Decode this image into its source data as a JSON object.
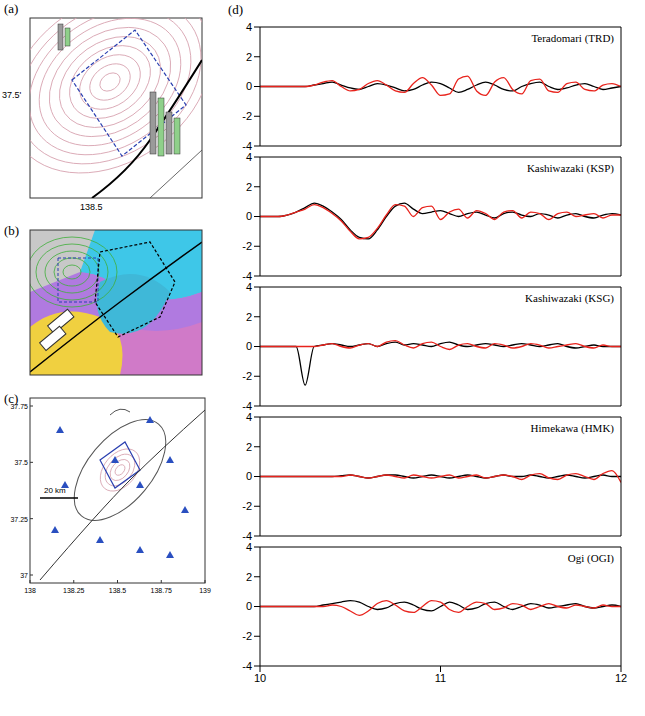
{
  "figure": {
    "panels": [
      {
        "label": "(a)",
        "lat_label": "37.5'",
        "lon_label": 138.5
      },
      {
        "label": "(b)"
      },
      {
        "label": "(c)",
        "lat_ticks": [
          37.75,
          37.5,
          37.25,
          37
        ],
        "lon_ticks": [
          138,
          138.25,
          138.5,
          138.75,
          139
        ],
        "scale_label": "20 km"
      },
      {
        "label": "(d)"
      }
    ]
  },
  "chart_data": [
    {
      "type": "line",
      "title": "Teradomari (TRD)",
      "tick_labels": "y",
      "xlim": [
        10,
        12
      ],
      "xticks": [
        10,
        11,
        12
      ],
      "ylim": [
        -4,
        4
      ],
      "yticks": [
        -4,
        -2,
        0,
        2,
        4
      ],
      "x": [
        10,
        10.05,
        10.1,
        10.15,
        10.2,
        10.25,
        10.3,
        10.35,
        10.4,
        10.45,
        10.5,
        10.55,
        10.6,
        10.65,
        10.7,
        10.75,
        10.8,
        10.85,
        10.9,
        10.95,
        11,
        11.05,
        11.1,
        11.15,
        11.2,
        11.25,
        11.3,
        11.35,
        11.4,
        11.45,
        11.5,
        11.55,
        11.6,
        11.65,
        11.7,
        11.75,
        11.8,
        11.85,
        11.9,
        11.95,
        12
      ],
      "series": [
        {
          "color": "#000000",
          "values": [
            0,
            0,
            0,
            0,
            0,
            0,
            0.1,
            0.2,
            0.3,
            0.1,
            -0.1,
            -0.2,
            0,
            0.2,
            0.1,
            -0.1,
            -0.3,
            -0.2,
            0.1,
            0.3,
            0.2,
            -0.1,
            -0.4,
            -0.2,
            0.1,
            0.3,
            0.1,
            -0.2,
            -0.3,
            0,
            0.2,
            0.3,
            0,
            -0.2,
            -0.1,
            0.1,
            0.2,
            0,
            -0.2,
            -0.1,
            0
          ]
        },
        {
          "color": "#e8231c",
          "values": [
            0,
            0,
            0,
            0,
            0,
            0,
            0.1,
            0.3,
            0.4,
            0,
            -0.3,
            -0.2,
            0.2,
            0.4,
            0.1,
            -0.3,
            -0.4,
            0.2,
            0.6,
            0.1,
            -0.6,
            -0.5,
            0.5,
            0.7,
            -0.3,
            -0.6,
            0.3,
            0.6,
            -0.2,
            -0.5,
            0.4,
            0.5,
            -0.3,
            -0.4,
            0.2,
            0.3,
            -0.2,
            -0.3,
            0.1,
            0.2,
            0
          ]
        }
      ]
    },
    {
      "type": "line",
      "title": "Kashiwazaki (KSP)",
      "tick_labels": "y",
      "xlim": [
        10,
        12
      ],
      "xticks": [
        10,
        11,
        12
      ],
      "ylim": [
        -4,
        4
      ],
      "yticks": [
        -4,
        -2,
        0,
        2,
        4
      ],
      "x": [
        10,
        10.05,
        10.1,
        10.15,
        10.2,
        10.25,
        10.3,
        10.35,
        10.4,
        10.45,
        10.5,
        10.55,
        10.6,
        10.65,
        10.7,
        10.75,
        10.8,
        10.85,
        10.9,
        10.95,
        11,
        11.05,
        11.1,
        11.15,
        11.2,
        11.25,
        11.3,
        11.35,
        11.4,
        11.45,
        11.5,
        11.55,
        11.6,
        11.65,
        11.7,
        11.75,
        11.8,
        11.85,
        11.9,
        11.95,
        12
      ],
      "series": [
        {
          "color": "#000000",
          "values": [
            0,
            0,
            0,
            0.1,
            0.3,
            0.6,
            0.9,
            0.7,
            0.3,
            -0.2,
            -0.9,
            -1.4,
            -1.5,
            -0.9,
            0,
            0.7,
            0.9,
            0.5,
            0.2,
            0.3,
            0.4,
            0.2,
            0,
            0.2,
            0.3,
            0.1,
            -0.1,
            0.2,
            0.3,
            0.1,
            0,
            0.2,
            0.1,
            -0.1,
            0.1,
            0.2,
            0,
            -0.1,
            0.1,
            0.2,
            0.1
          ]
        },
        {
          "color": "#e8231c",
          "values": [
            0,
            0,
            0,
            0.1,
            0.3,
            0.5,
            0.8,
            0.6,
            0.2,
            -0.3,
            -1,
            -1.5,
            -1.4,
            -0.8,
            0.1,
            0.8,
            0.7,
            0,
            0.6,
            0.7,
            -0.2,
            0.3,
            0.5,
            -0.1,
            0.4,
            0.2,
            -0.2,
            0.3,
            0.4,
            -0.1,
            0.3,
            0.2,
            -0.2,
            0.2,
            0.3,
            0,
            0.1,
            0.2,
            -0.1,
            0.1,
            0.1
          ]
        }
      ]
    },
    {
      "type": "line",
      "title": "Kashiwazaki (KSG)",
      "tick_labels": "y",
      "xlim": [
        10,
        12
      ],
      "xticks": [
        10,
        11,
        12
      ],
      "ylim": [
        -4,
        4
      ],
      "yticks": [
        -4,
        -2,
        0,
        2,
        4
      ],
      "x": [
        10,
        10.05,
        10.1,
        10.15,
        10.2,
        10.25,
        10.3,
        10.35,
        10.4,
        10.45,
        10.5,
        10.55,
        10.6,
        10.65,
        10.7,
        10.75,
        10.8,
        10.85,
        10.9,
        10.95,
        11,
        11.05,
        11.1,
        11.15,
        11.2,
        11.25,
        11.3,
        11.35,
        11.4,
        11.45,
        11.5,
        11.55,
        11.6,
        11.65,
        11.7,
        11.75,
        11.8,
        11.85,
        11.9,
        11.95,
        12
      ],
      "series": [
        {
          "color": "#000000",
          "values": [
            0,
            0,
            0,
            0,
            0,
            -2.6,
            0,
            0.1,
            0.2,
            0.1,
            0,
            0.1,
            0.2,
            0,
            0.2,
            0.3,
            0.1,
            0.2,
            0.1,
            0,
            0.2,
            0.3,
            0.1,
            0,
            0.1,
            0.2,
            0.1,
            0,
            0.1,
            0.2,
            0.1,
            0,
            0.1,
            0.2,
            0,
            -0.1,
            0,
            0.1,
            0,
            0,
            0
          ]
        },
        {
          "color": "#e8231c",
          "values": [
            0,
            0,
            0,
            0,
            0,
            0,
            0,
            0.1,
            0.2,
            0,
            -0.1,
            0.1,
            0.2,
            0,
            0.3,
            0.4,
            0.1,
            -0.1,
            0.2,
            0.3,
            0,
            -0.2,
            0.1,
            0.2,
            0,
            -0.1,
            0.2,
            0.1,
            -0.1,
            0,
            0.2,
            0.1,
            -0.1,
            0,
            0.1,
            0.2,
            0,
            -0.1,
            0.1,
            0,
            0
          ]
        }
      ]
    },
    {
      "type": "line",
      "title": "Himekawa (HMK)",
      "tick_labels": "y",
      "xlim": [
        10,
        12
      ],
      "xticks": [
        10,
        11,
        12
      ],
      "ylim": [
        -4,
        4
      ],
      "yticks": [
        -4,
        -2,
        0,
        2,
        4
      ],
      "x": [
        10,
        10.05,
        10.1,
        10.15,
        10.2,
        10.25,
        10.3,
        10.35,
        10.4,
        10.45,
        10.5,
        10.55,
        10.6,
        10.65,
        10.7,
        10.75,
        10.8,
        10.85,
        10.9,
        10.95,
        11,
        11.05,
        11.1,
        11.15,
        11.2,
        11.25,
        11.3,
        11.35,
        11.4,
        11.45,
        11.5,
        11.55,
        11.6,
        11.65,
        11.7,
        11.75,
        11.8,
        11.85,
        11.9,
        11.95,
        12
      ],
      "series": [
        {
          "color": "#000000",
          "values": [
            0,
            0,
            0,
            0,
            0,
            0,
            0,
            0,
            0,
            0.05,
            0.1,
            0,
            -0.1,
            0,
            0.1,
            0.1,
            0,
            -0.1,
            0,
            0.1,
            0,
            -0.1,
            0,
            0.1,
            0,
            -0.1,
            0,
            0.1,
            0,
            0,
            0.1,
            0,
            -0.1,
            0,
            0.1,
            0,
            -0.1,
            0,
            0.1,
            0,
            0
          ]
        },
        {
          "color": "#e8231c",
          "values": [
            0,
            0,
            0,
            0,
            0,
            0,
            0,
            0,
            0,
            0,
            0.1,
            0,
            -0.1,
            0,
            0.1,
            0,
            -0.1,
            0.1,
            0,
            -0.1,
            0,
            0.1,
            -0.1,
            0,
            0.1,
            -0.1,
            0,
            0.1,
            0,
            -0.2,
            0.1,
            0.2,
            -0.1,
            -0.2,
            0.1,
            0.2,
            0,
            -0.2,
            0.2,
            0.4,
            -0.4
          ]
        }
      ]
    },
    {
      "type": "line",
      "title": "Ogi (OGI)",
      "tick_labels": true,
      "xlim": [
        10,
        12
      ],
      "xticks": [
        10,
        11,
        12
      ],
      "ylim": [
        -4,
        4
      ],
      "yticks": [
        -4,
        -2,
        0,
        2,
        4
      ],
      "x": [
        10,
        10.05,
        10.1,
        10.15,
        10.2,
        10.25,
        10.3,
        10.35,
        10.4,
        10.45,
        10.5,
        10.55,
        10.6,
        10.65,
        10.7,
        10.75,
        10.8,
        10.85,
        10.9,
        10.95,
        11,
        11.05,
        11.1,
        11.15,
        11.2,
        11.25,
        11.3,
        11.35,
        11.4,
        11.45,
        11.5,
        11.55,
        11.6,
        11.65,
        11.7,
        11.75,
        11.8,
        11.85,
        11.9,
        11.95,
        12
      ],
      "series": [
        {
          "color": "#000000",
          "values": [
            0,
            0,
            0,
            0,
            0,
            0,
            0,
            0.1,
            0.2,
            0.3,
            0.4,
            0.3,
            0,
            -0.2,
            -0.1,
            0.2,
            0.3,
            0.1,
            -0.2,
            -0.3,
            0,
            0.3,
            0.1,
            -0.2,
            -0.1,
            0.2,
            0.3,
            0,
            -0.2,
            0,
            0.2,
            0.1,
            -0.1,
            0,
            0.1,
            0.2,
            0,
            -0.1,
            0,
            0.1,
            0
          ]
        },
        {
          "color": "#e8231c",
          "values": [
            0,
            0,
            0,
            0,
            0,
            0,
            0,
            0,
            0.1,
            0,
            -0.3,
            -0.6,
            -0.3,
            0.2,
            0.4,
            0.1,
            -0.3,
            -0.4,
            0,
            0.4,
            0.3,
            -0.2,
            -0.4,
            0,
            0.3,
            0.2,
            -0.2,
            -0.1,
            0.2,
            0.1,
            -0.2,
            0,
            0.2,
            0,
            -0.1,
            0.1,
            0,
            -0.1,
            0.1,
            0,
            0
          ]
        }
      ]
    }
  ]
}
